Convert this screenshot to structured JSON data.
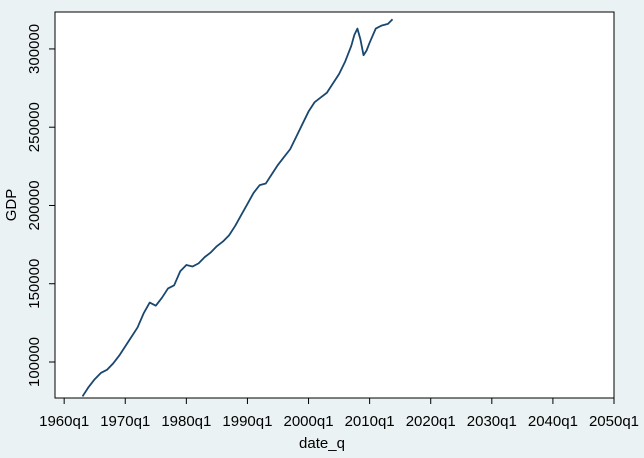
{
  "chart_data": {
    "type": "line",
    "x": [
      "1963q1",
      "1964q1",
      "1965q1",
      "1966q1",
      "1967q1",
      "1968q1",
      "1969q1",
      "1970q1",
      "1971q1",
      "1972q1",
      "1973q1",
      "1974q1",
      "1975q1",
      "1976q1",
      "1977q1",
      "1978q1",
      "1979q1",
      "1980q1",
      "1981q1",
      "1982q1",
      "1983q1",
      "1984q1",
      "1985q1",
      "1986q1",
      "1987q1",
      "1988q1",
      "1989q1",
      "1990q1",
      "1991q1",
      "1992q1",
      "1993q1",
      "1994q1",
      "1995q1",
      "1996q1",
      "1997q1",
      "1998q1",
      "1999q1",
      "2000q1",
      "2001q1",
      "2002q1",
      "2003q1",
      "2004q1",
      "2005q1",
      "2006q1",
      "2007q1",
      "2007q3",
      "2008q1",
      "2008q3",
      "2009q1",
      "2009q3",
      "2010q1",
      "2011q1",
      "2012q1",
      "2013q1",
      "2013q4"
    ],
    "series": [
      {
        "name": "GDP",
        "color": "#1a476f",
        "values": [
          78000,
          84000,
          89000,
          93000,
          95000,
          99000,
          104000,
          110000,
          116000,
          122000,
          131000,
          138000,
          136000,
          141000,
          147000,
          149000,
          158000,
          162000,
          161000,
          163000,
          167000,
          170000,
          174000,
          177000,
          181000,
          187000,
          194000,
          201000,
          208000,
          213000,
          214000,
          220000,
          226000,
          231000,
          236000,
          244000,
          252000,
          260000,
          266000,
          269000,
          272000,
          278000,
          284000,
          292000,
          302000,
          309000,
          313000,
          306000,
          296000,
          299000,
          304000,
          313000,
          315000,
          316000,
          319000
        ]
      }
    ],
    "xlabel": "date_q",
    "ylabel": "GDP",
    "xlim": [
      "1958q3",
      "2050q1"
    ],
    "ylim": [
      77000,
      323600
    ],
    "xticks": [
      "1960q1",
      "1970q1",
      "1980q1",
      "1990q1",
      "2000q1",
      "2010q1",
      "2020q1",
      "2030q1",
      "2040q1",
      "2050q1"
    ],
    "yticks": [
      100000,
      150000,
      200000,
      250000,
      300000
    ]
  }
}
